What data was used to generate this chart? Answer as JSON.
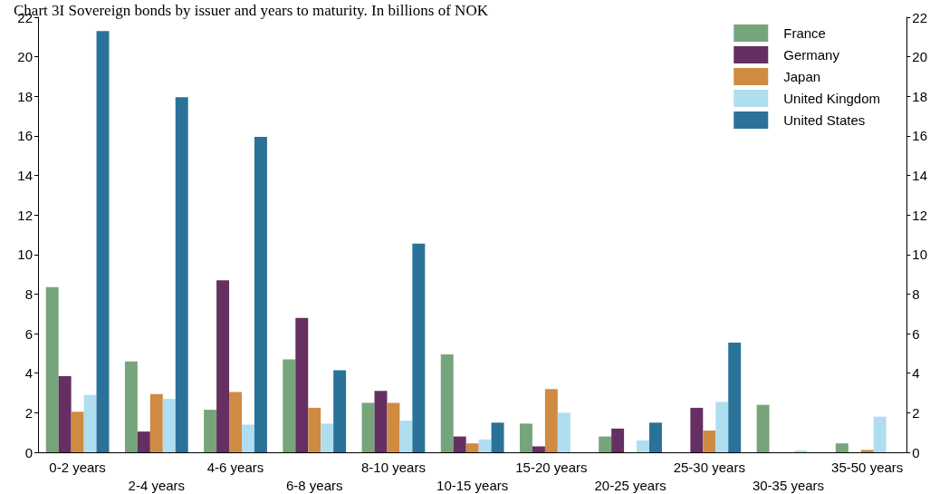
{
  "chart_data": {
    "type": "bar",
    "title": "Chart 3I Sovereign bonds by issuer and years to maturity. In billions of NOK",
    "categories": [
      "0-2 years",
      "2-4 years",
      "4-6 years",
      "6-8 years",
      "8-10 years",
      "10-15 years",
      "15-20 years",
      "20-25 years",
      "25-30 years",
      "30-35 years",
      "35-50 years"
    ],
    "series": [
      {
        "name": "France",
        "color": "#77a57b",
        "values": [
          8.35,
          4.6,
          2.15,
          4.7,
          2.5,
          4.95,
          1.45,
          0.8,
          null,
          2.4,
          0.45
        ]
      },
      {
        "name": "Germany",
        "color": "#652f61",
        "values": [
          3.85,
          1.05,
          8.7,
          6.8,
          3.1,
          0.8,
          0.3,
          1.2,
          2.25,
          null,
          null
        ]
      },
      {
        "name": "Japan",
        "color": "#cf8b41",
        "values": [
          2.05,
          2.95,
          3.05,
          2.25,
          2.5,
          0.45,
          3.2,
          null,
          1.1,
          null,
          0.12
        ]
      },
      {
        "name": "United Kingdom",
        "color": "#afdef0",
        "values": [
          2.9,
          2.7,
          1.4,
          1.45,
          1.6,
          0.65,
          2.0,
          0.6,
          2.55,
          0.1,
          1.8
        ]
      },
      {
        "name": "United States",
        "color": "#2b7299",
        "values": [
          21.3,
          17.95,
          15.95,
          4.15,
          10.55,
          1.5,
          null,
          1.5,
          5.55,
          null,
          null
        ]
      }
    ],
    "ylim": [
      0,
      22
    ],
    "yticks": [
      0,
      2,
      4,
      6,
      8,
      10,
      12,
      14,
      16,
      18,
      20,
      22
    ],
    "y2lim": [
      0,
      22
    ],
    "y2ticks": [
      0,
      2,
      4,
      6,
      8,
      10,
      12,
      14,
      16,
      18,
      20,
      22
    ],
    "grid": false,
    "legend": "top right"
  }
}
